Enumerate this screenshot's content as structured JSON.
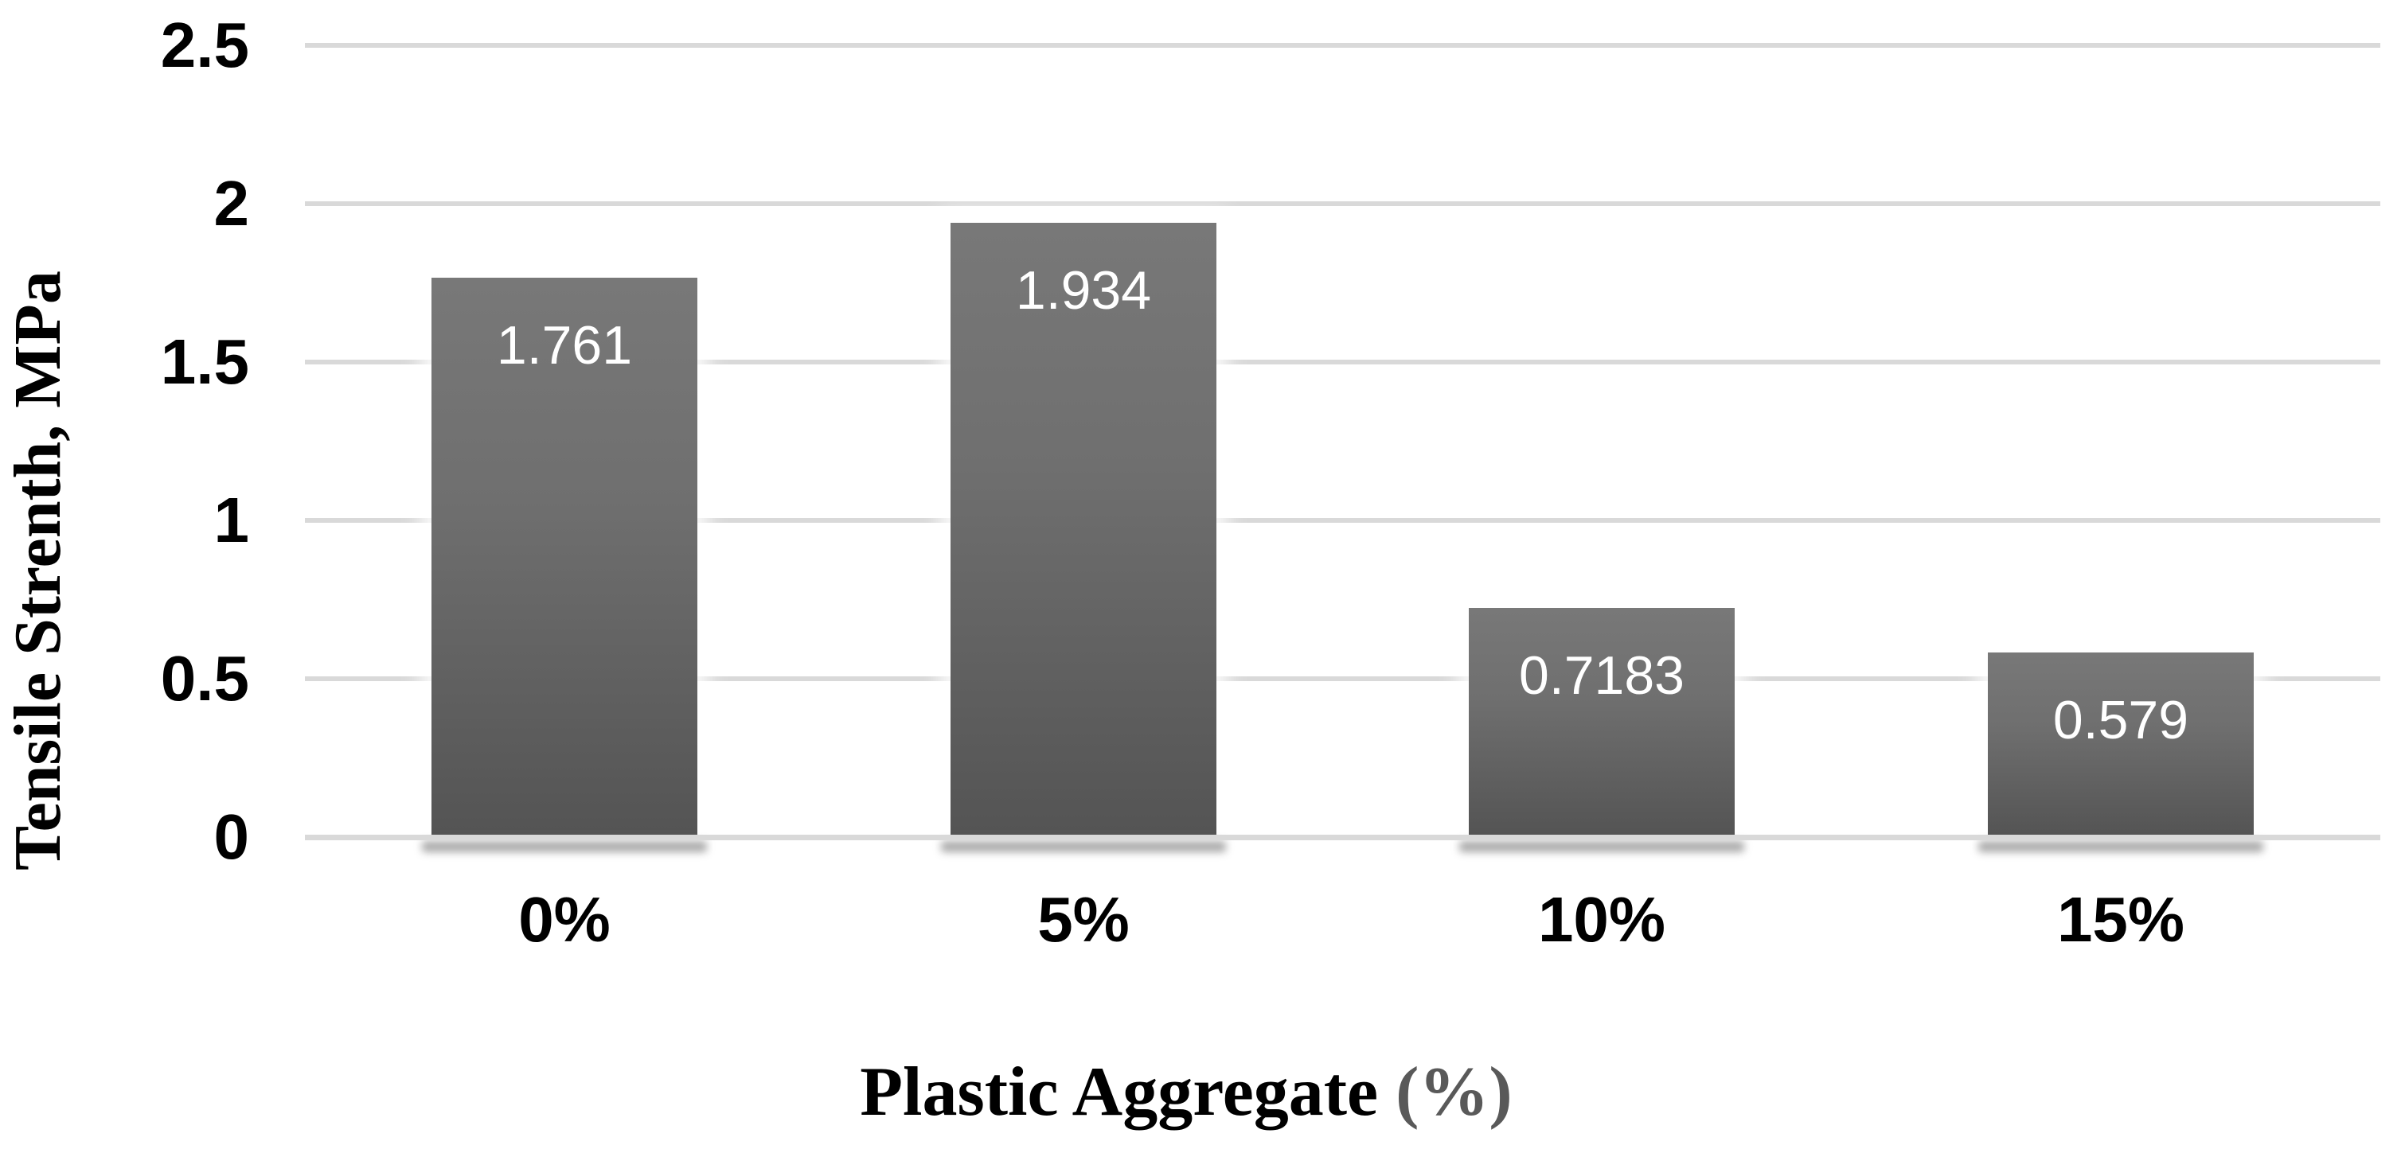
{
  "chart_data": {
    "type": "bar",
    "categories": [
      "0%",
      "5%",
      "10%",
      "15%"
    ],
    "values": [
      1.761,
      1.934,
      0.7183,
      0.579
    ],
    "value_labels": [
      "1.761",
      "1.934",
      "0.7183",
      "0.579"
    ],
    "ylabel": "Tensile Strenth, MPa",
    "xlabel": "Plastic Aggregate (%)",
    "xlabel_main": "Plastic Aggregate ",
    "xlabel_suffix": "(%)",
    "ylim": [
      0,
      2.5
    ],
    "yticks": [
      0,
      0.5,
      1,
      1.5,
      2,
      2.5
    ],
    "ytick_labels": [
      "0",
      "0.5",
      "1",
      "1.5",
      "2",
      "2.5"
    ],
    "grid": "horizontal-only",
    "legend": "none",
    "colors": {
      "bar_gradient_top": "#787878",
      "bar_gradient_bottom": "#545454",
      "bar_value_label": "#ffffff",
      "gridline": "#d9d9d9",
      "axis_text": "#000000",
      "xlabel_suffix_gray": "#595959",
      "background": "#ffffff"
    }
  }
}
